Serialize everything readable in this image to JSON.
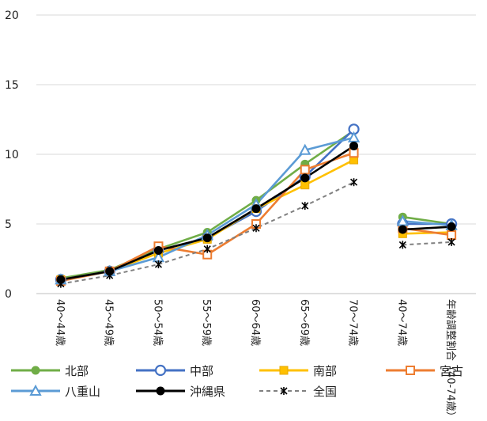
{
  "chart_data": {
    "type": "line",
    "title": "",
    "xlabel": "",
    "ylabel": "",
    "ylim": [
      0,
      20
    ],
    "yticks": [
      0,
      5,
      10,
      15,
      20
    ],
    "grid": "horizontal",
    "legend_position": "bottom",
    "categories": [
      "40～44歳",
      "45～49歳",
      "50～54歳",
      "55～59歳",
      "60～64歳",
      "65～69歳",
      "70～74歳",
      "40～74歳",
      "年齢調整割合（40-74歳）"
    ],
    "segments": [
      [
        0,
        6
      ],
      [
        7,
        8
      ]
    ],
    "series": [
      {
        "name": "北部",
        "color": "#70AD47",
        "marker": "circle-filled",
        "dash": false,
        "values": [
          1.1,
          1.7,
          3.2,
          4.4,
          6.7,
          9.3,
          11.7,
          5.5,
          5.0
        ]
      },
      {
        "name": "中部",
        "color": "#4472C4",
        "marker": "circle-open",
        "dash": false,
        "values": [
          1.0,
          1.6,
          3.1,
          4.0,
          5.9,
          8.4,
          11.8,
          5.0,
          5.0
        ]
      },
      {
        "name": "南部",
        "color": "#FFC000",
        "marker": "square-filled",
        "dash": false,
        "values": [
          1.0,
          1.6,
          2.9,
          3.9,
          6.1,
          7.8,
          9.6,
          4.3,
          4.4
        ]
      },
      {
        "name": "宮古",
        "color": "#ED7D31",
        "marker": "square-open",
        "dash": false,
        "values": [
          0.9,
          1.6,
          3.4,
          2.8,
          5.0,
          8.9,
          10.1,
          4.7,
          4.2
        ]
      },
      {
        "name": "八重山",
        "color": "#5B9BD5",
        "marker": "triangle-open",
        "dash": false,
        "values": [
          1.0,
          1.6,
          2.6,
          4.2,
          6.4,
          10.3,
          11.2,
          5.2,
          4.9
        ]
      },
      {
        "name": "沖縄県",
        "color": "#000000",
        "marker": "circle-filled",
        "dash": false,
        "values": [
          1.0,
          1.6,
          3.1,
          4.0,
          6.1,
          8.3,
          10.6,
          4.6,
          4.8
        ]
      },
      {
        "name": "全国",
        "color": "#808080",
        "marker": "asterisk",
        "dash": true,
        "values": [
          0.7,
          1.3,
          2.1,
          3.2,
          4.7,
          6.3,
          8.0,
          3.5,
          3.7
        ]
      }
    ]
  }
}
